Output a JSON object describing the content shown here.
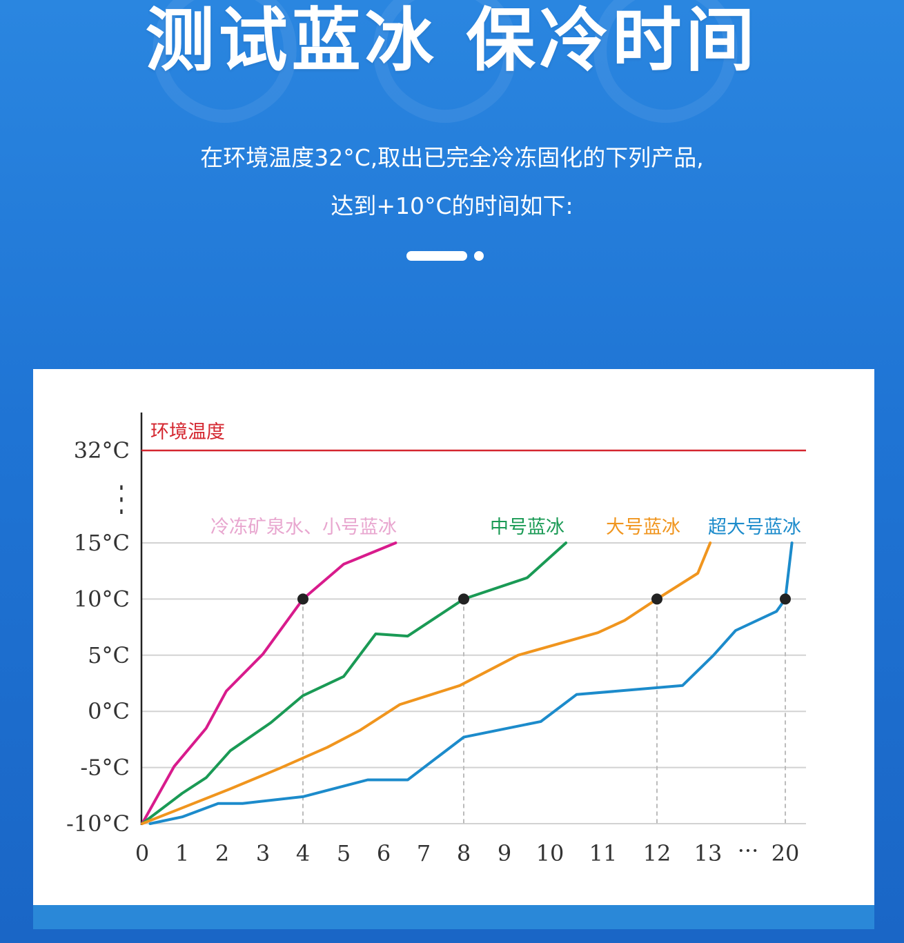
{
  "page": {
    "title": "测试蓝冰 保冷时间",
    "subtitle_line1": "在环境温度32°C,取出已完全冷冻固化的下列产品,",
    "subtitle_line2": "达到+10°C的时间如下:"
  },
  "chart_data": {
    "type": "line",
    "title": "",
    "xlabel": "",
    "ylabel": "",
    "x_ticks": [
      "0",
      "1",
      "2",
      "3",
      "4",
      "5",
      "6",
      "7",
      "8",
      "9",
      "10",
      "11",
      "12",
      "13",
      "20"
    ],
    "y_ticks": [
      {
        "value": -10,
        "label": "-10°C"
      },
      {
        "value": -5,
        "label": "-5°C"
      },
      {
        "value": 0,
        "label": "0°C"
      },
      {
        "value": 5,
        "label": "5°C"
      },
      {
        "value": 10,
        "label": "10°C"
      },
      {
        "value": 15,
        "label": "15°C"
      },
      {
        "value": 32,
        "label": "32°C"
      }
    ],
    "axis_break_label": "⋮",
    "x_break_label": "···",
    "grid": true,
    "reference_line": {
      "name": "环境温度",
      "value": 32,
      "color": "#d4262f"
    },
    "target_line": {
      "value": 10
    },
    "series": [
      {
        "name": "冷冻矿泉水、小号蓝冰",
        "color": "#d81b8c",
        "label_color": "#e8a6cf",
        "points": [
          [
            0,
            -10
          ],
          [
            0.8,
            -4.9
          ],
          [
            1.6,
            -1.5
          ],
          [
            2.1,
            1.8
          ],
          [
            3.0,
            5.1
          ],
          [
            4.0,
            10
          ],
          [
            5.0,
            13.1
          ],
          [
            6.3,
            15
          ]
        ],
        "reach_10": 4
      },
      {
        "name": "中号蓝冰",
        "color": "#1a9a55",
        "label_color": "#1a9a55",
        "points": [
          [
            0,
            -10
          ],
          [
            1.0,
            -7.3
          ],
          [
            1.6,
            -5.9
          ],
          [
            2.2,
            -3.5
          ],
          [
            3.2,
            -1.0
          ],
          [
            4.0,
            1.4
          ],
          [
            5.0,
            3.1
          ],
          [
            5.8,
            6.9
          ],
          [
            6.6,
            6.7
          ],
          [
            8.0,
            10
          ],
          [
            9.5,
            11.9
          ],
          [
            10.3,
            15
          ]
        ],
        "reach_10": 8
      },
      {
        "name": "大号蓝冰",
        "color": "#f0951e",
        "label_color": "#f0951e",
        "points": [
          [
            0,
            -10
          ],
          [
            1.0,
            -8.6
          ],
          [
            2.2,
            -6.9
          ],
          [
            3.4,
            -5.1
          ],
          [
            4.6,
            -3.2
          ],
          [
            5.4,
            -1.7
          ],
          [
            6.4,
            0.6
          ],
          [
            7.9,
            2.3
          ],
          [
            9.3,
            5.0
          ],
          [
            10.9,
            7.0
          ],
          [
            11.4,
            8.1
          ],
          [
            12.0,
            10
          ],
          [
            12.8,
            12.3
          ],
          [
            13.2,
            15
          ]
        ],
        "reach_10": 12
      },
      {
        "name": "超大号蓝冰",
        "color": "#1c8bcb",
        "label_color": "#1c8bcb",
        "points": [
          [
            0.2,
            -10
          ],
          [
            1.0,
            -9.4
          ],
          [
            1.9,
            -8.2
          ],
          [
            2.5,
            -8.2
          ],
          [
            4.0,
            -7.6
          ],
          [
            5.6,
            -6.1
          ],
          [
            6.6,
            -6.1
          ],
          [
            8.0,
            -2.3
          ],
          [
            9.8,
            -0.9
          ],
          [
            10.5,
            1.5
          ],
          [
            12.5,
            2.3
          ],
          [
            13.5,
            5.0
          ],
          [
            15.5,
            7.2
          ],
          [
            19.2,
            8.9
          ],
          [
            20,
            10
          ],
          [
            20.6,
            15
          ]
        ],
        "reach_10": 20
      }
    ]
  }
}
